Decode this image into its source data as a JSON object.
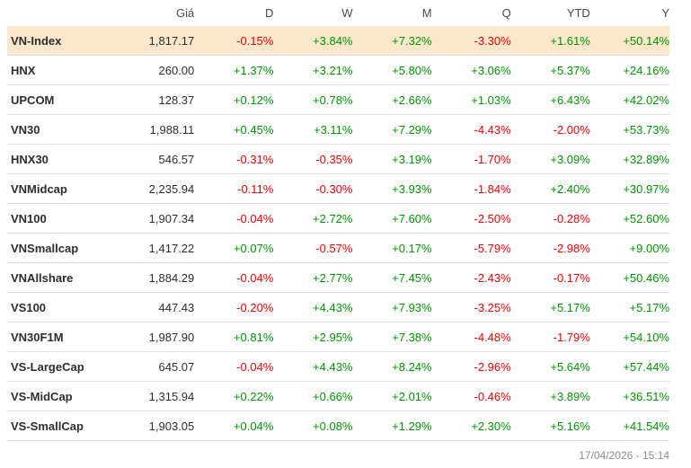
{
  "chart_data": {
    "type": "table",
    "columns": [
      "",
      "Giá",
      "D",
      "W",
      "M",
      "Q",
      "YTD",
      "Y"
    ],
    "rows": [
      {
        "name": "VN-Index",
        "price": "1,817.17",
        "changes": [
          "-0.15%",
          "+3.84%",
          "+7.32%",
          "-3.30%",
          "+1.61%",
          "+50.14%"
        ],
        "highlighted": true
      },
      {
        "name": "HNX",
        "price": "260.00",
        "changes": [
          "+1.37%",
          "+3.21%",
          "+5.80%",
          "+3.06%",
          "+5.37%",
          "+24.16%"
        ],
        "highlighted": false
      },
      {
        "name": "UPCOM",
        "price": "128.37",
        "changes": [
          "+0.12%",
          "+0.78%",
          "+2.66%",
          "+1.03%",
          "+6.43%",
          "+42.02%"
        ],
        "highlighted": false
      },
      {
        "name": "VN30",
        "price": "1,988.11",
        "changes": [
          "+0.45%",
          "+3.11%",
          "+7.29%",
          "-4.43%",
          "-2.00%",
          "+53.73%"
        ],
        "highlighted": false
      },
      {
        "name": "HNX30",
        "price": "546.57",
        "changes": [
          "-0.31%",
          "-0.35%",
          "+3.19%",
          "-1.70%",
          "+3.09%",
          "+32.89%"
        ],
        "highlighted": false
      },
      {
        "name": "VNMidcap",
        "price": "2,235.94",
        "changes": [
          "-0.11%",
          "-0.30%",
          "+3.93%",
          "-1.84%",
          "+2.40%",
          "+30.97%"
        ],
        "highlighted": false
      },
      {
        "name": "VN100",
        "price": "1,907.34",
        "changes": [
          "-0.04%",
          "+2.72%",
          "+7.60%",
          "-2.50%",
          "-0.28%",
          "+52.60%"
        ],
        "highlighted": false
      },
      {
        "name": "VNSmallcap",
        "price": "1,417.22",
        "changes": [
          "+0.07%",
          "-0.57%",
          "+0.17%",
          "-5.79%",
          "-2.98%",
          "+9.00%"
        ],
        "highlighted": false
      },
      {
        "name": "VNAllshare",
        "price": "1,884.29",
        "changes": [
          "-0.04%",
          "+2.77%",
          "+7.45%",
          "-2.43%",
          "-0.17%",
          "+50.46%"
        ],
        "highlighted": false
      },
      {
        "name": "VS100",
        "price": "447.43",
        "changes": [
          "-0.20%",
          "+4.43%",
          "+7.93%",
          "-3.25%",
          "+5.17%",
          "+5.17%"
        ],
        "highlighted": false
      },
      {
        "name": "VN30F1M",
        "price": "1,987.90",
        "changes": [
          "+0.81%",
          "+2.95%",
          "+7.38%",
          "-4.48%",
          "-1.79%",
          "+54.10%"
        ],
        "highlighted": false
      },
      {
        "name": "VS-LargeCap",
        "price": "645.07",
        "changes": [
          "-0.04%",
          "+4.43%",
          "+8.24%",
          "-2.96%",
          "+5.64%",
          "+57.44%"
        ],
        "highlighted": false
      },
      {
        "name": "VS-MidCap",
        "price": "1,315.94",
        "changes": [
          "+0.22%",
          "+0.66%",
          "+2.01%",
          "-0.46%",
          "+3.89%",
          "+36.51%"
        ],
        "highlighted": false
      },
      {
        "name": "VS-SmallCap",
        "price": "1,903.05",
        "changes": [
          "+0.04%",
          "+0.08%",
          "+1.29%",
          "+2.30%",
          "+5.16%",
          "+41.54%"
        ],
        "highlighted": false
      }
    ],
    "footer_timestamp": "17/04/2026 - 15:14"
  },
  "colors": {
    "positive_change": "#009600",
    "negative_change": "#f40000",
    "highlight_row_bg": "#fbe7cb",
    "header_text": "#4a4a4a",
    "label_text": "#2e2e2e",
    "timestamp_text": "#8c8c8c"
  }
}
